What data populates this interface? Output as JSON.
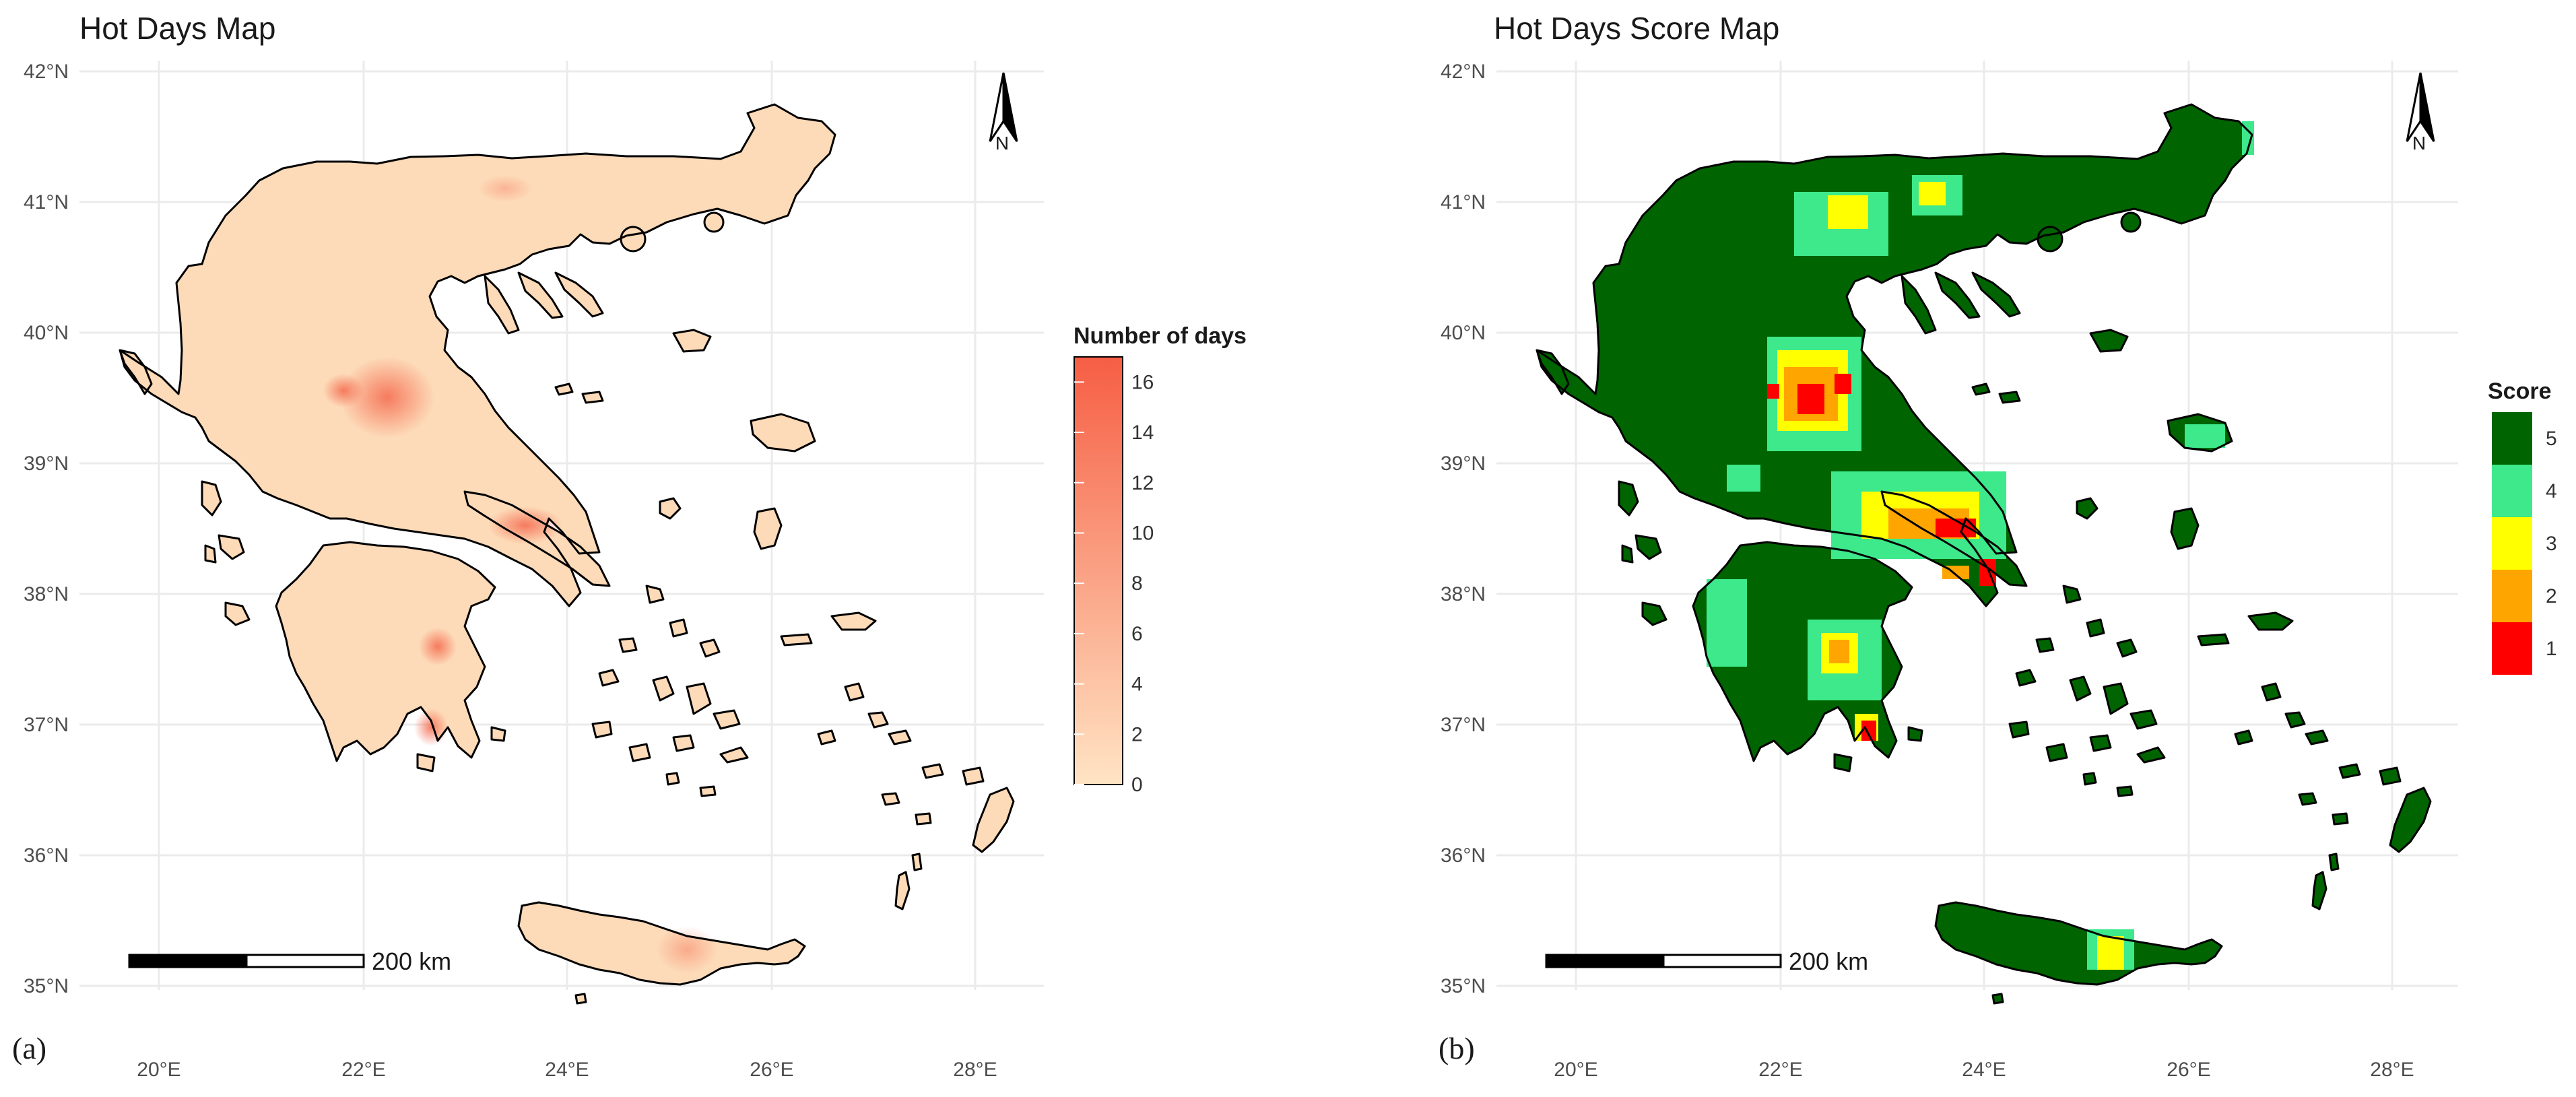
{
  "maps": [
    {
      "id": "a",
      "title": "Hot Days Map",
      "panel_label": "(a)",
      "x_ticks": [
        "20°E",
        "22°E",
        "24°E",
        "26°E",
        "28°E"
      ],
      "y_ticks": [
        "42°N",
        "41°N",
        "40°N",
        "39°N",
        "38°N",
        "37°N",
        "36°N",
        "35°N"
      ],
      "legend": {
        "type": "continuous",
        "title": "Number of days",
        "min": 0,
        "max": 17,
        "low_color": "#FFE4C4",
        "high_color": "#F65E44",
        "labels": [
          "16",
          "14",
          "12",
          "10",
          "8",
          "6",
          "4",
          "2",
          "0"
        ]
      },
      "scale_bar": "200 km",
      "north_arrow": "N",
      "land_color": "#FDDAB8",
      "hotspot_color": "#F46A4E"
    },
    {
      "id": "b",
      "title": "Hot Days Score Map",
      "panel_label": "(b)",
      "x_ticks": [
        "20°E",
        "22°E",
        "24°E",
        "26°E",
        "28°E"
      ],
      "y_ticks": [
        "42°N",
        "41°N",
        "40°N",
        "39°N",
        "38°N",
        "37°N",
        "36°N",
        "35°N"
      ],
      "legend": {
        "type": "discrete",
        "title": "Score",
        "items": [
          {
            "label": "5",
            "color": "#006400"
          },
          {
            "label": "4",
            "color": "#3DE98A"
          },
          {
            "label": "3",
            "color": "#FFFF00"
          },
          {
            "label": "2",
            "color": "#FFA500"
          },
          {
            "label": "1",
            "color": "#FF0000"
          }
        ]
      },
      "scale_bar": "200 km",
      "north_arrow": "N",
      "land_color": "#006400"
    }
  ]
}
